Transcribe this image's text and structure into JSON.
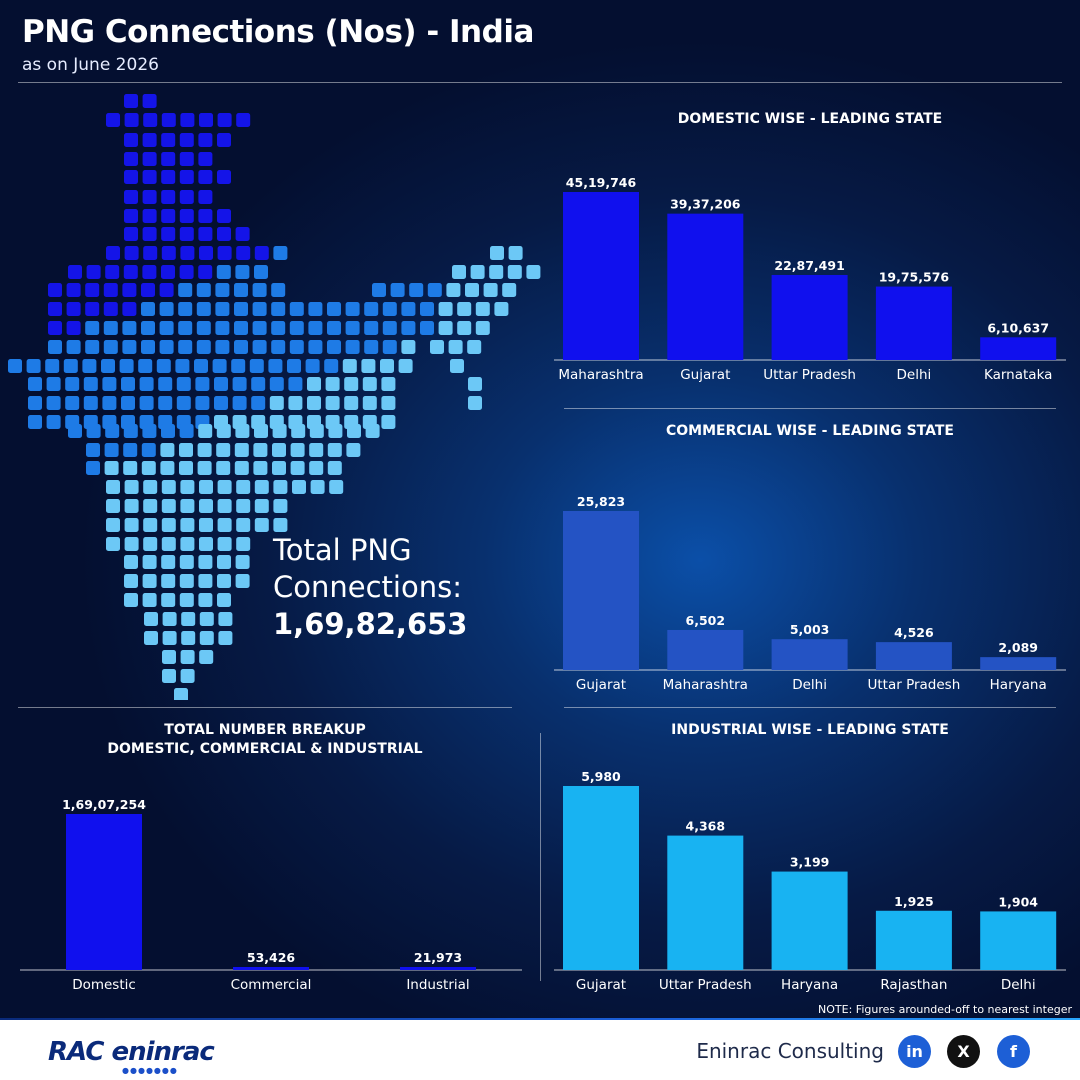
{
  "header": {
    "title": "PNG Connections (Nos) - India",
    "subtitle": "as on June 2026"
  },
  "map_panel": {
    "total_label_line1": "Total PNG",
    "total_label_line2": "Connections:",
    "total_value": "1,69,82,653"
  },
  "colors": {
    "domestic": "#1010ee",
    "commercial": "#2453c4",
    "industrial": "#18b3f2",
    "map_dark": "#1414e8",
    "map_mid": "#1e7be6",
    "map_light": "#6cc8f6"
  },
  "chart_data": [
    {
      "type": "bar",
      "title": "DOMESTIC WISE - LEADING STATE",
      "categories": [
        "Maharashtra",
        "Gujarat",
        "Uttar Pradesh",
        "Delhi",
        "Karnataka"
      ],
      "values": [
        4519746,
        3937206,
        2287491,
        1975576,
        610637
      ],
      "labels": [
        "45,19,746",
        "39,37,206",
        "22,87,491",
        "19,75,576",
        "6,10,637"
      ],
      "color": "#1010ee"
    },
    {
      "type": "bar",
      "title": "COMMERCIAL WISE - LEADING STATE",
      "categories": [
        "Gujarat",
        "Maharashtra",
        "Delhi",
        "Uttar Pradesh",
        "Haryana"
      ],
      "values": [
        25823,
        6502,
        5003,
        4526,
        2089
      ],
      "labels": [
        "25,823",
        "6,502",
        "5,003",
        "4,526",
        "2,089"
      ],
      "color": "#2453c4"
    },
    {
      "type": "bar",
      "title": "INDUSTRIAL WISE - LEADING STATE",
      "categories": [
        "Gujarat",
        "Uttar Pradesh",
        "Haryana",
        "Rajasthan",
        "Delhi"
      ],
      "values": [
        5980,
        4368,
        3199,
        1925,
        1904
      ],
      "labels": [
        "5,980",
        "4,368",
        "3,199",
        "1,925",
        "1,904"
      ],
      "color": "#18b3f2"
    },
    {
      "type": "bar",
      "title": "TOTAL NUMBER BREAKUP\nDOMESTIC, COMMERCIAL & INDUSTRIAL",
      "categories": [
        "Domestic",
        "Commercial",
        "Industrial"
      ],
      "values": [
        16907254,
        53426,
        21973
      ],
      "labels": [
        "1,69,07,254",
        "53,426",
        "21,973"
      ],
      "color": "#1010ee"
    }
  ],
  "note": "NOTE: Figures arounded-off to nearest integer",
  "footer": {
    "logo_text": "RAC eninrac",
    "company": "Eninrac Consulting",
    "social": [
      {
        "icon": "linkedin-icon",
        "glyph": "in"
      },
      {
        "icon": "x-icon",
        "glyph": "X"
      },
      {
        "icon": "facebook-icon",
        "glyph": "f"
      }
    ]
  }
}
